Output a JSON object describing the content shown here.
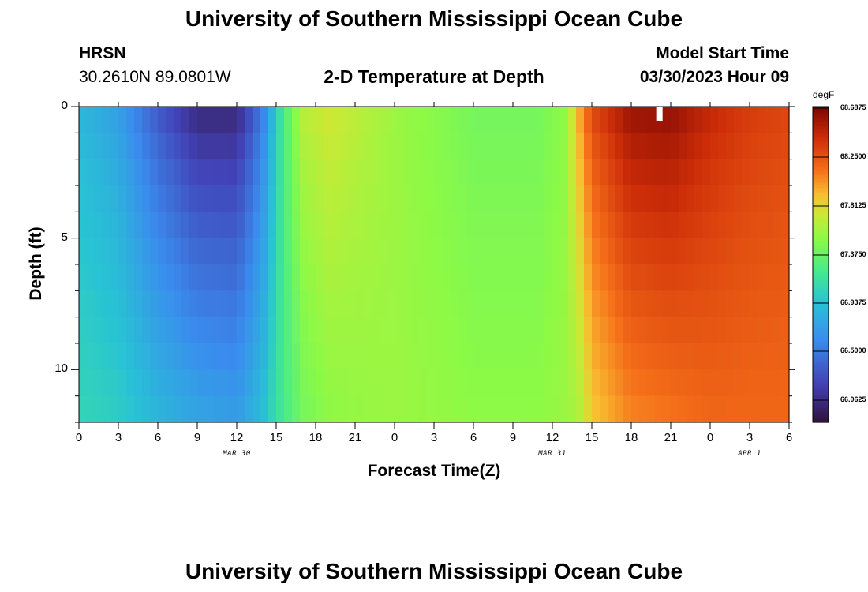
{
  "page": {
    "title_top": "University of Southern Mississippi Ocean Cube",
    "title_bottom": "University of Southern Mississippi Ocean Cube",
    "station": "HRSN",
    "coords": "30.2610N  89.0801W",
    "model_label": "Model Start Time",
    "model_time": "03/30/2023 Hour 09"
  },
  "chart_data": {
    "type": "heatmap",
    "title": "2-D Temperature at Depth",
    "xlabel": "Forecast Time(Z)",
    "ylabel": "Depth (ft)",
    "x_tick_labels": [
      "0",
      "3",
      "6",
      "9",
      "12",
      "15",
      "18",
      "21",
      "0",
      "3",
      "6",
      "9",
      "12",
      "15",
      "18",
      "21",
      "0",
      "3",
      "6"
    ],
    "x_range_hours": [
      0,
      54
    ],
    "date_labels": [
      "MAR 30",
      "MAR 31",
      "APR 1"
    ],
    "y_ticks": [
      0,
      5,
      10
    ],
    "y_range_ft": [
      0,
      12
    ],
    "colorbar": {
      "unit": "degF",
      "min": 65.85,
      "max": 68.6875,
      "labels": [
        "68.6875",
        "68.2500",
        "67.8125",
        "67.3750",
        "66.9375",
        "66.5000",
        "66.0625"
      ]
    },
    "temperature_profile_degF": [
      {
        "hour": 0,
        "surface": 66.85,
        "bottom": 67.05
      },
      {
        "hour": 3,
        "surface": 66.7,
        "bottom": 67.0
      },
      {
        "hour": 6,
        "surface": 66.3,
        "bottom": 66.85
      },
      {
        "hour": 9,
        "surface": 66.0,
        "bottom": 66.75
      },
      {
        "hour": 12,
        "surface": 66.0,
        "bottom": 66.7
      },
      {
        "hour": 14,
        "surface": 66.5,
        "bottom": 66.9
      },
      {
        "hour": 15.5,
        "surface": 67.2,
        "bottom": 67.2
      },
      {
        "hour": 17,
        "surface": 67.65,
        "bottom": 67.4
      },
      {
        "hour": 19,
        "surface": 67.75,
        "bottom": 67.5
      },
      {
        "hour": 24,
        "surface": 67.55,
        "bottom": 67.55
      },
      {
        "hour": 30,
        "surface": 67.4,
        "bottom": 67.5
      },
      {
        "hour": 35,
        "surface": 67.4,
        "bottom": 67.5
      },
      {
        "hour": 37,
        "surface": 67.5,
        "bottom": 67.55
      },
      {
        "hour": 38,
        "surface": 67.95,
        "bottom": 67.6
      },
      {
        "hour": 39,
        "surface": 68.3,
        "bottom": 67.85
      },
      {
        "hour": 42,
        "surface": 68.6,
        "bottom": 68.05
      },
      {
        "hour": 45,
        "surface": 68.62,
        "bottom": 68.1
      },
      {
        "hour": 48,
        "surface": 68.45,
        "bottom": 68.15
      },
      {
        "hour": 51,
        "surface": 68.35,
        "bottom": 68.15
      },
      {
        "hour": 54,
        "surface": 68.3,
        "bottom": 68.15
      }
    ]
  }
}
